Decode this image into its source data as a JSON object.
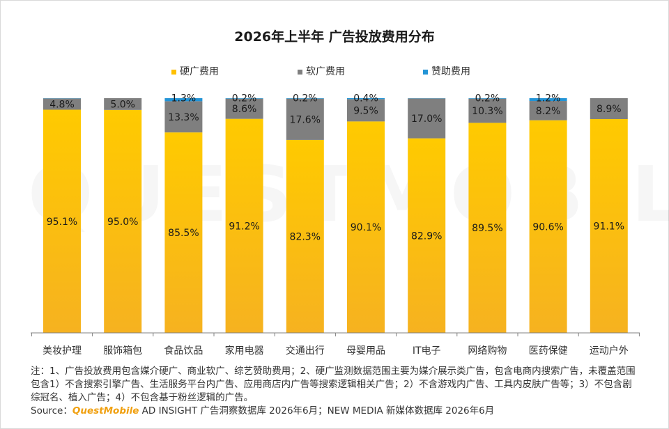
{
  "title": "2026年上半年 广告投放费用分布",
  "colors": {
    "hard_ad_top": "#ffca00",
    "hard_ad_bottom": "#f6b220",
    "soft_ad": "#7f7f7f",
    "sponsor": "#2394d6",
    "axis": "#808080"
  },
  "chart_data": {
    "type": "bar",
    "stacked": true,
    "percent": true,
    "title": "2026年上半年 广告投放费用分布",
    "legend_position": "top",
    "categories": [
      "美妆护理",
      "服饰箱包",
      "食品饮品",
      "家用电器",
      "交通出行",
      "母婴用品",
      "IT电子",
      "网络购物",
      "医药保健",
      "运动户外"
    ],
    "series": [
      {
        "name": "硬广费用",
        "values": [
          95.1,
          95.0,
          85.5,
          91.2,
          82.3,
          90.1,
          82.9,
          89.5,
          90.6,
          91.1
        ],
        "labels": [
          "95.1%",
          "95.0%",
          "85.5%",
          "91.2%",
          "82.3%",
          "90.1%",
          "82.9%",
          "89.5%",
          "90.6%",
          "91.1%"
        ]
      },
      {
        "name": "软广费用",
        "values": [
          4.8,
          5.0,
          13.3,
          8.6,
          17.6,
          9.5,
          17.0,
          10.3,
          8.2,
          8.9
        ],
        "labels": [
          "4.8%",
          "5.0%",
          "13.3%",
          "8.6%",
          "17.6%",
          "9.5%",
          "17.0%",
          "10.3%",
          "8.2%",
          "8.9%"
        ]
      },
      {
        "name": "赞助费用",
        "values": [
          0.1,
          0.0,
          1.3,
          0.2,
          0.2,
          0.4,
          0.1,
          0.2,
          1.2,
          0.0
        ],
        "labels": [
          "",
          "",
          "1.3%",
          "0.2%",
          "0.2%",
          "0.4%",
          "",
          "0.2%",
          "1.2%",
          ""
        ]
      }
    ],
    "ylim": [
      0,
      100
    ],
    "grid": false
  },
  "footnote": "注：1、广告投放费用包含媒介硬广、商业软广、综艺赞助费用；2、硬广监测数据范围主要为媒介展示类广告，包含电商内搜索广告，未覆盖范围包含1）不含搜索引擎广告、生活服务平台内广告、应用商店内广告等搜索逻辑相关广告；2）不含游戏内广告、工具内皮肤广告等；3）不包含剧综冠名、植入广告；4）不包含基于粉丝逻辑的广告。",
  "source": {
    "prefix": "Source：",
    "brand": "QuestMobile",
    "rest": " AD INSIGHT 广告洞察数据库 2026年6月；NEW MEDIA 新媒体数据库 2026年6月"
  },
  "watermark": "QUESTMOBILE"
}
